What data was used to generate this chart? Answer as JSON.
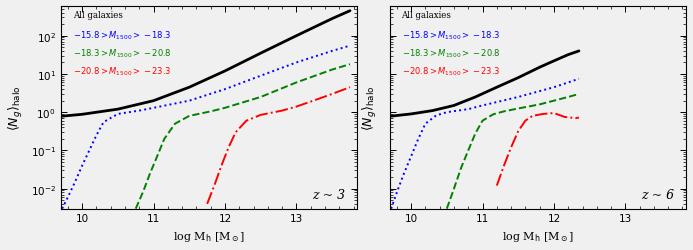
{
  "title_left": "z ~ 3",
  "title_right": "z ~ 6",
  "legend_labels": [
    "All galaxies",
    "$-15.8 > M_{1500} > -18.3$",
    "$-18.3 > M_{1500} > -20.8$",
    "$-20.8 > M_{1500} > -23.3$"
  ],
  "legend_colors": [
    "black",
    "blue",
    "green",
    "red"
  ],
  "background_color": "#f0f0f0",
  "xlim": [
    9.7,
    13.85
  ],
  "ylim": [
    0.003,
    600
  ],
  "z3": {
    "all": {
      "logM": [
        9.7,
        10.0,
        10.5,
        11.0,
        11.5,
        12.0,
        12.5,
        13.0,
        13.5,
        13.75
      ],
      "Ng": [
        0.78,
        0.88,
        1.2,
        2.0,
        4.5,
        12,
        35,
        100,
        280,
        450
      ]
    },
    "blue": {
      "logM": [
        9.72,
        9.8,
        9.9,
        10.0,
        10.1,
        10.2,
        10.3,
        10.5,
        10.8,
        11.0,
        11.5,
        12.0,
        12.5,
        13.0,
        13.5,
        13.75
      ],
      "Ng": [
        0.003,
        0.006,
        0.015,
        0.04,
        0.1,
        0.25,
        0.55,
        0.9,
        1.1,
        1.3,
        2.0,
        4.0,
        9.0,
        20,
        40,
        55
      ]
    },
    "green": {
      "logM": [
        10.75,
        10.85,
        10.95,
        11.05,
        11.15,
        11.3,
        11.5,
        11.8,
        12.0,
        12.5,
        13.0,
        13.5,
        13.75
      ],
      "Ng": [
        0.003,
        0.008,
        0.025,
        0.07,
        0.2,
        0.5,
        0.8,
        1.05,
        1.3,
        2.5,
        6.0,
        13,
        18
      ]
    },
    "red": {
      "logM": [
        11.75,
        11.85,
        11.95,
        12.05,
        12.15,
        12.3,
        12.5,
        12.8,
        13.0,
        13.3,
        13.5,
        13.75
      ],
      "Ng": [
        0.004,
        0.012,
        0.04,
        0.12,
        0.3,
        0.6,
        0.85,
        1.1,
        1.4,
        2.2,
        3.0,
        4.5
      ]
    }
  },
  "z6": {
    "all": {
      "logM": [
        9.7,
        10.0,
        10.3,
        10.6,
        10.9,
        11.2,
        11.5,
        11.8,
        12.0,
        12.2,
        12.35
      ],
      "Ng": [
        0.78,
        0.9,
        1.1,
        1.5,
        2.5,
        4.5,
        8.0,
        15,
        22,
        32,
        40
      ]
    },
    "blue": {
      "logM": [
        9.72,
        9.8,
        9.9,
        10.0,
        10.1,
        10.2,
        10.35,
        10.5,
        10.8,
        11.0,
        11.5,
        12.0,
        12.2,
        12.35
      ],
      "Ng": [
        0.003,
        0.008,
        0.025,
        0.07,
        0.2,
        0.5,
        0.82,
        1.0,
        1.2,
        1.5,
        2.5,
        4.5,
        6.0,
        7.5
      ]
    },
    "green": {
      "logM": [
        10.5,
        10.6,
        10.7,
        10.8,
        10.9,
        11.0,
        11.15,
        11.3,
        11.5,
        11.8,
        12.0,
        12.2,
        12.35
      ],
      "Ng": [
        0.003,
        0.01,
        0.035,
        0.1,
        0.28,
        0.6,
        0.88,
        1.05,
        1.25,
        1.6,
        2.0,
        2.5,
        3.0
      ]
    },
    "red": {
      "logM": [
        11.2,
        11.3,
        11.4,
        11.5,
        11.6,
        11.7,
        11.85,
        12.0,
        12.15,
        12.3,
        12.35
      ],
      "Ng": [
        0.012,
        0.04,
        0.12,
        0.32,
        0.6,
        0.8,
        0.9,
        0.95,
        0.75,
        0.7,
        0.72
      ]
    }
  }
}
